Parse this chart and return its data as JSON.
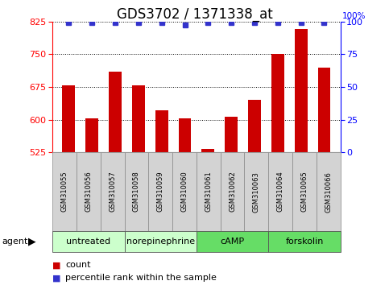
{
  "title": "GDS3702 / 1371338_at",
  "samples": [
    "GSM310055",
    "GSM310056",
    "GSM310057",
    "GSM310058",
    "GSM310059",
    "GSM310060",
    "GSM310061",
    "GSM310062",
    "GSM310063",
    "GSM310064",
    "GSM310065",
    "GSM310066"
  ],
  "counts": [
    678,
    604,
    710,
    679,
    622,
    603,
    533,
    607,
    645,
    750,
    808,
    720
  ],
  "percentile_ranks": [
    99,
    99,
    99,
    99,
    99,
    97,
    99,
    99,
    99,
    99,
    99,
    99
  ],
  "bar_color": "#cc0000",
  "dot_color": "#3333cc",
  "ylim_left": [
    525,
    825
  ],
  "ylim_right": [
    0,
    100
  ],
  "yticks_left": [
    525,
    600,
    675,
    750,
    825
  ],
  "yticks_right": [
    0,
    25,
    50,
    75,
    100
  ],
  "groups": [
    {
      "label": "untreated",
      "start": 0,
      "end": 3,
      "color": "#ccffcc"
    },
    {
      "label": "norepinephrine",
      "start": 3,
      "end": 6,
      "color": "#ccffcc"
    },
    {
      "label": "cAMP",
      "start": 6,
      "end": 9,
      "color": "#66dd66"
    },
    {
      "label": "forskolin",
      "start": 9,
      "end": 12,
      "color": "#66dd66"
    }
  ],
  "agent_label": "agent",
  "legend_count_label": "count",
  "legend_pct_label": "percentile rank within the sample",
  "bar_width": 0.55,
  "title_fontsize": 12,
  "tick_fontsize": 8,
  "sample_fontsize": 6,
  "group_fontsize": 8,
  "legend_fontsize": 8
}
